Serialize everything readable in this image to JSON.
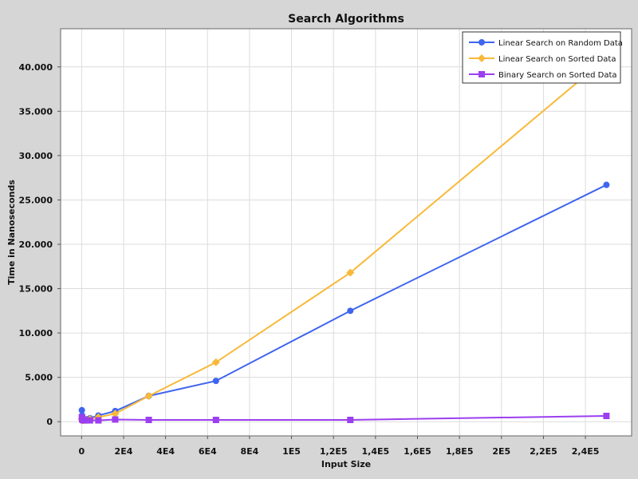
{
  "chart_data": {
    "type": "line",
    "title": "Search Algorithms",
    "xlabel": "Input Size",
    "ylabel": "Time in Nanoseconds",
    "xlim": [
      -10000,
      262000
    ],
    "ylim": [
      -1600,
      44300
    ],
    "grid": true,
    "legend_position": "top-right",
    "x_ticks": [
      {
        "value": 0,
        "label": "0"
      },
      {
        "value": 20000,
        "label": "2E4"
      },
      {
        "value": 40000,
        "label": "4E4"
      },
      {
        "value": 60000,
        "label": "6E4"
      },
      {
        "value": 80000,
        "label": "8E4"
      },
      {
        "value": 100000,
        "label": "1E5"
      },
      {
        "value": 120000,
        "label": "1,2E5"
      },
      {
        "value": 140000,
        "label": "1,4E5"
      },
      {
        "value": 160000,
        "label": "1,6E5"
      },
      {
        "value": 180000,
        "label": "1,8E5"
      },
      {
        "value": 200000,
        "label": "2E5"
      },
      {
        "value": 220000,
        "label": "2,2E5"
      },
      {
        "value": 240000,
        "label": "2,4E5"
      }
    ],
    "y_ticks": [
      {
        "value": 0,
        "label": "0"
      },
      {
        "value": 5000,
        "label": "5.000"
      },
      {
        "value": 10000,
        "label": "10.000"
      },
      {
        "value": 15000,
        "label": "15.000"
      },
      {
        "value": 20000,
        "label": "20.000"
      },
      {
        "value": 25000,
        "label": "25.000"
      },
      {
        "value": 30000,
        "label": "30.000"
      },
      {
        "value": 35000,
        "label": "35.000"
      },
      {
        "value": 40000,
        "label": "40.000"
      }
    ],
    "series": [
      {
        "name": "Linear Search on Random Data",
        "color": "#3f64f0",
        "marker": "circle",
        "x": [
          125,
          250,
          500,
          1000,
          2000,
          4000,
          8000,
          16000,
          32000,
          64000,
          128000,
          250000
        ],
        "y": [
          1300,
          700,
          300,
          200,
          300,
          400,
          700,
          1200,
          2900,
          4600,
          12500,
          26700
        ]
      },
      {
        "name": "Linear Search on Sorted Data",
        "color": "#f8b93a",
        "marker": "diamond",
        "x": [
          125,
          250,
          500,
          1000,
          2000,
          4000,
          8000,
          16000,
          32000,
          64000,
          128000,
          250000
        ],
        "y": [
          300,
          200,
          150,
          150,
          200,
          300,
          500,
          900,
          2900,
          6700,
          16800,
          41000
        ]
      },
      {
        "name": "Binary Search on Sorted Data",
        "color": "#9b3ff0",
        "marker": "square",
        "x": [
          125,
          250,
          500,
          1000,
          2000,
          4000,
          8000,
          16000,
          32000,
          64000,
          128000,
          250000
        ],
        "y": [
          500,
          300,
          200,
          150,
          150,
          150,
          150,
          250,
          200,
          200,
          200,
          650
        ]
      }
    ]
  }
}
